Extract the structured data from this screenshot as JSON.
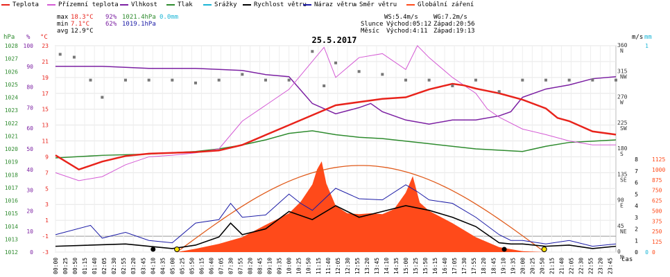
{
  "legend": [
    {
      "label": "Teplota",
      "color": "#e8231b"
    },
    {
      "label": "Přízemní teplota",
      "color": "#d45ad4"
    },
    {
      "label": "Vlhkost",
      "color": "#7b1fa2"
    },
    {
      "label": "Tlak",
      "color": "#2e8b2e"
    },
    {
      "label": "Srážky",
      "color": "#19b5d6"
    },
    {
      "label": "Rychlost větru",
      "color": "#000000"
    },
    {
      "label": "Náraz větru",
      "color": "#1a1aa6"
    },
    {
      "label": "Směr větru",
      "color": "#777777"
    },
    {
      "label": "Globální záření",
      "color": "#ff4a1a"
    }
  ],
  "stats": {
    "max_label": "max",
    "max_temp": "18.3°C",
    "max_hum": "92%",
    "max_press": "1021.4hPa",
    "max_rain": "0.0mm",
    "min_label": "min",
    "min_temp": "7.1°C",
    "min_hum": "62%",
    "min_press": "1019.1hPa",
    "avg_label": "avg",
    "avg_temp": "12.9°C"
  },
  "astro": {
    "ws": "WS:5.4m/s",
    "wg": "WG:7.2m/s",
    "sun_label": "Slunce",
    "sun_rise": "Východ:05:12",
    "sun_set": "Západ:20:56",
    "moon_label": "Měsíc",
    "moon_rise": "Východ:4:11",
    "moon_set": "Západ:19:13"
  },
  "colors": {
    "temp": "#e8231b",
    "ground": "#d45ad4",
    "hum": "#7b1fa2",
    "press": "#2e8b2e",
    "rain": "#19b5d6",
    "wind": "#000000",
    "gust": "#1a1aa6",
    "dir": "#777777",
    "rad": "#ff4a1a"
  },
  "chart_data": {
    "type": "line",
    "title": "25.5.2017",
    "x_unit": "čas",
    "x_ticks": [
      "00:00",
      "00:25",
      "00:50",
      "01:15",
      "01:40",
      "02:05",
      "02:30",
      "02:55",
      "03:20",
      "03:45",
      "04:10",
      "04:35",
      "05:00",
      "05:25",
      "05:50",
      "06:15",
      "06:40",
      "07:05",
      "07:30",
      "07:55",
      "08:20",
      "08:45",
      "09:10",
      "09:35",
      "10:00",
      "10:25",
      "10:50",
      "11:15",
      "11:40",
      "12:05",
      "12:30",
      "12:55",
      "13:20",
      "13:45",
      "14:10",
      "14:35",
      "15:00",
      "15:25",
      "15:50",
      "16:15",
      "16:40",
      "17:05",
      "17:30",
      "17:55",
      "18:20",
      "18:45",
      "19:10",
      "19:35",
      "20:00",
      "20:25",
      "20:50",
      "21:15",
      "21:40",
      "22:05",
      "22:30",
      "22:55",
      "23:20",
      "23:45"
    ],
    "axes": {
      "pressure": {
        "unit": "hPa",
        "ticks": [
          "1028",
          "1027",
          "1026",
          "1025",
          "1024",
          "1023",
          "1022",
          "1021",
          "1020",
          "1019",
          "1018",
          "1017",
          "1016",
          "1015",
          "1014",
          "1013",
          "1012"
        ]
      },
      "humidity": {
        "unit": "%",
        "ticks": [
          "100",
          "90",
          "80",
          "70",
          "60",
          "50",
          "40",
          "30",
          "20",
          "10",
          "0"
        ]
      },
      "temperature": {
        "unit": "°C",
        "ticks": [
          "23",
          "21",
          "19",
          "17",
          "15",
          "13",
          "11",
          "9",
          "7",
          "5",
          "3",
          "1",
          "-1",
          "-3"
        ]
      },
      "direction": {
        "ticks": [
          "360",
          "315",
          "270",
          "225",
          "180",
          "135",
          "90",
          "45",
          "0"
        ],
        "labels": [
          "N",
          "NW",
          "W",
          "SW",
          "S",
          "SE",
          "E",
          "NE",
          "N"
        ]
      },
      "wind": {
        "unit": "m/s",
        "ticks": [
          "8",
          "7",
          "6",
          "5",
          "4",
          "3",
          "2",
          "1",
          "0"
        ]
      },
      "rain": {
        "unit": "mm",
        "ticks": [
          "1",
          "0"
        ]
      },
      "radiation": {
        "ticks": [
          "1125",
          "1000",
          "875",
          "750",
          "625",
          "500",
          "375",
          "250",
          "125",
          "0"
        ]
      }
    },
    "series": [
      {
        "name": "Teplota",
        "x": [
          0,
          1,
          2,
          3,
          4,
          5,
          6,
          7,
          8,
          10,
          12,
          14,
          15,
          16,
          17,
          17.5,
          18,
          18.5,
          19,
          20,
          21,
          21.5,
          22,
          23,
          24
        ],
        "values": [
          9.2,
          7.4,
          8.4,
          9.1,
          9.4,
          9.5,
          9.6,
          9.8,
          10.5,
          13.0,
          15.5,
          16.3,
          16.5,
          17.5,
          18.2,
          18.0,
          17.6,
          17.3,
          17.0,
          16.2,
          15.1,
          13.9,
          13.5,
          12.2,
          11.8
        ]
      },
      {
        "name": "Přízemní teplota",
        "x": [
          0,
          1,
          2,
          3,
          4,
          5,
          6,
          7,
          8,
          10,
          11.5,
          12,
          13,
          14,
          15,
          15.5,
          16,
          17,
          18,
          18.5,
          19,
          20,
          21,
          22,
          23,
          24
        ],
        "values": [
          7.0,
          6.0,
          6.5,
          8.0,
          9.0,
          9.2,
          9.5,
          10.0,
          13.5,
          17.5,
          22.8,
          19.0,
          21.5,
          22.0,
          20.0,
          23.0,
          21.5,
          19.0,
          17.0,
          15.0,
          14.0,
          12.5,
          11.8,
          11.0,
          10.5,
          10.5
        ]
      },
      {
        "name": "Vlhkost",
        "x": [
          0,
          2,
          4,
          6,
          8,
          9,
          10,
          11,
          12,
          13,
          13.5,
          14,
          15,
          16,
          17,
          18,
          19,
          19.5,
          20,
          21,
          22,
          23,
          24
        ],
        "values": [
          90,
          90,
          89,
          89,
          88,
          86,
          85,
          72,
          67,
          70,
          72,
          68,
          64,
          62,
          64,
          64,
          66,
          68,
          75,
          79,
          81,
          84,
          85
        ]
      },
      {
        "name": "Tlak",
        "x": [
          0,
          2,
          4,
          6,
          7,
          8,
          9,
          10,
          11,
          12,
          13,
          14,
          16,
          18,
          20,
          21,
          22,
          23,
          24
        ],
        "values": [
          1019.3,
          1019.5,
          1019.6,
          1019.8,
          1020.0,
          1020.3,
          1020.7,
          1021.2,
          1021.4,
          1021.1,
          1020.9,
          1020.8,
          1020.4,
          1020.0,
          1019.8,
          1020.2,
          1020.5,
          1020.6,
          1020.7
        ]
      },
      {
        "name": "Rychlost větru",
        "x": [
          0,
          3,
          5,
          6,
          7,
          7.5,
          8,
          9,
          10,
          11,
          12,
          13,
          14,
          15,
          16,
          17,
          18,
          19,
          19.5,
          20,
          21,
          22,
          23,
          24
        ],
        "values": [
          0.5,
          0.7,
          0.3,
          0.6,
          1.3,
          2.5,
          1.5,
          2.0,
          3.5,
          2.8,
          4.0,
          3.0,
          3.5,
          4.0,
          3.6,
          3.0,
          2.2,
          0.8,
          0.7,
          0.7,
          0.5,
          0.6,
          0.3,
          0.5
        ]
      },
      {
        "name": "Náraz větru",
        "x": [
          0,
          1.5,
          2,
          3,
          4,
          5,
          6,
          7,
          7.5,
          8,
          9,
          10,
          10.5,
          11,
          12,
          13,
          14,
          15,
          15.5,
          16,
          17,
          18,
          19,
          19.5,
          20,
          21,
          22,
          23,
          24
        ],
        "values": [
          1.5,
          2.3,
          1.2,
          1.7,
          1.0,
          0.8,
          2.5,
          2.8,
          4.2,
          3.0,
          3.2,
          5.0,
          4.2,
          3.6,
          5.5,
          4.6,
          4.5,
          5.8,
          5.2,
          4.5,
          4.2,
          3.0,
          1.5,
          1.0,
          1.0,
          0.7,
          1.0,
          0.5,
          0.7
        ]
      },
      {
        "name": "Globální záření",
        "x": [
          0,
          5.2,
          6,
          7,
          8,
          9,
          10,
          10.5,
          11,
          11.2,
          11.4,
          11.6,
          12,
          12.5,
          13,
          13.5,
          14,
          14.5,
          15,
          15.3,
          15.6,
          16,
          17,
          18,
          19,
          20,
          21,
          24
        ],
        "values": [
          0,
          0,
          40,
          100,
          180,
          330,
          470,
          610,
          820,
          1000,
          1100,
          830,
          560,
          470,
          460,
          470,
          460,
          520,
          720,
          920,
          600,
          500,
          350,
          180,
          60,
          10,
          0,
          0
        ]
      },
      {
        "name": "Směr větru",
        "x": [
          0.2,
          0.8,
          1.5,
          2,
          3,
          4,
          5,
          6,
          7,
          8,
          9,
          10,
          11,
          11.5,
          12,
          13,
          14,
          15,
          16,
          17,
          18,
          19,
          20,
          21,
          22,
          23,
          24
        ],
        "values": [
          345,
          340,
          300,
          270,
          300,
          300,
          300,
          295,
          300,
          310,
          300,
          300,
          350,
          290,
          330,
          315,
          310,
          300,
          300,
          290,
          300,
          280,
          300,
          300,
          300,
          300,
          300
        ]
      }
    ],
    "annotations": [
      "",
      ""
    ]
  }
}
